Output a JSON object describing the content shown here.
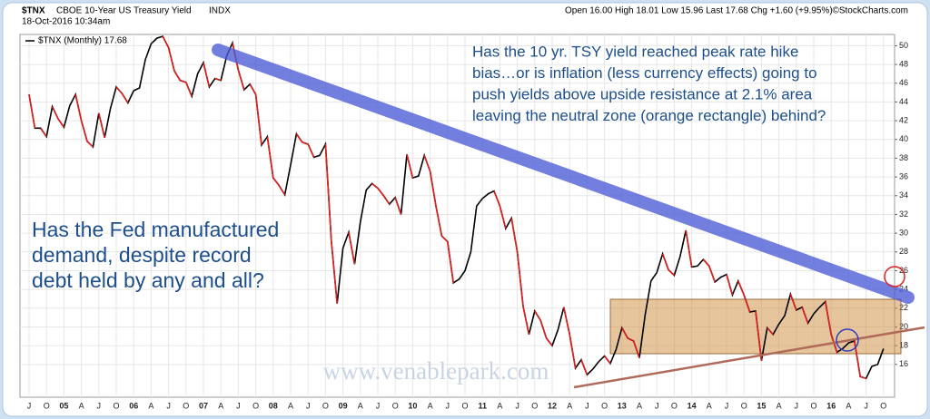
{
  "chart_data": {
    "type": "line",
    "symbol": "$TNX",
    "title": "CBOE 10-Year US Treasury Yield",
    "exchange": "INDX",
    "date": "18-Oct-2016 10:34am",
    "quote": "Open 16.00  High 18.01  Low 15.96  Last 17.68  Chg +1.60 (+9.95%)",
    "source": "©StockCharts.com",
    "categories": [
      "J",
      null,
      null,
      "O",
      null,
      null,
      "05",
      null,
      null,
      "A",
      null,
      null,
      "J",
      null,
      null,
      "O",
      null,
      null,
      "06",
      null,
      null,
      "A",
      null,
      null,
      "J",
      null,
      null,
      "O",
      null,
      null,
      "07",
      null,
      null,
      "A",
      null,
      null,
      "J",
      null,
      null,
      "O",
      null,
      null,
      "08",
      null,
      null,
      "A",
      null,
      null,
      "J",
      null,
      null,
      "O",
      null,
      null,
      "09",
      null,
      null,
      "A",
      null,
      null,
      "J",
      null,
      null,
      "O",
      null,
      null,
      "10",
      null,
      null,
      "A",
      null,
      null,
      "J",
      null,
      null,
      "O",
      null,
      null,
      "11",
      null,
      null,
      "A",
      null,
      null,
      "J",
      null,
      null,
      "O",
      null,
      null,
      "12",
      null,
      null,
      "A",
      null,
      null,
      "J",
      null,
      null,
      "O",
      null,
      null,
      "13",
      null,
      null,
      "A",
      null,
      null,
      "J",
      null,
      null,
      "O",
      null,
      null,
      "14",
      null,
      null,
      "A",
      null,
      null,
      "J",
      null,
      null,
      "O",
      null,
      null,
      "15",
      null,
      null,
      "A",
      null,
      null,
      "J",
      null,
      null,
      "O",
      null,
      null,
      "16",
      null,
      null,
      "A",
      null,
      null,
      "J",
      null,
      null,
      "O"
    ],
    "series": [
      {
        "name": "$TNX (Monthly) 17.68",
        "color": "#000000",
        "down_color": "#e0201e",
        "values": [
          44.8,
          41.2,
          41.2,
          40.3,
          43.5,
          42.2,
          41.3,
          43.6,
          44.8,
          42.0,
          39.8,
          39.2,
          42.8,
          40.2,
          43.3,
          45.6,
          44.9,
          43.9,
          45.2,
          45.5,
          48.5,
          50.2,
          50.8,
          51.0,
          49.8,
          47.3,
          46.3,
          46.1,
          44.6,
          47.0,
          48.2,
          45.6,
          46.5,
          46.3,
          48.9,
          50.3,
          47.4,
          45.3,
          45.9,
          44.8,
          39.4,
          40.3,
          35.9,
          35.1,
          34.1,
          37.3,
          40.6,
          39.7,
          39.5,
          38.1,
          38.3,
          39.5,
          29.2,
          22.5,
          28.4,
          30.1,
          26.7,
          31.2,
          34.6,
          35.3,
          34.8,
          34.0,
          33.1,
          33.8,
          32.0,
          38.4,
          35.9,
          36.1,
          38.3,
          36.6,
          32.9,
          29.7,
          29.1,
          24.7,
          25.1,
          26.0,
          28.0,
          32.9,
          33.7,
          34.2,
          34.5,
          32.9,
          30.5,
          31.6,
          28.0,
          22.2,
          19.2,
          21.7,
          20.7,
          18.8,
          18.0,
          19.7,
          22.1,
          19.2,
          15.6,
          16.5,
          14.9,
          15.5,
          16.3,
          16.9,
          16.1,
          17.6,
          19.9,
          18.8,
          18.5,
          16.7,
          21.3,
          24.9,
          25.8,
          27.8,
          26.1,
          25.5,
          27.5,
          30.3,
          26.4,
          26.5,
          27.2,
          26.5,
          24.8,
          25.3,
          25.6,
          23.4,
          24.9,
          23.4,
          21.6,
          21.7,
          16.4,
          19.9,
          19.2,
          20.3,
          21.2,
          23.5,
          21.8,
          22.1,
          20.4,
          21.4,
          22.1,
          22.7,
          19.2,
          17.3,
          17.7,
          18.3,
          18.5,
          14.7,
          14.5,
          15.8,
          16.0,
          17.68
        ]
      }
    ],
    "ylim": [
      12.5,
      51.2
    ],
    "yticks": [
      16,
      18,
      20,
      22,
      24,
      26,
      28,
      30,
      32,
      34,
      36,
      38,
      40,
      42,
      44,
      46,
      48,
      50
    ],
    "grid": true,
    "note_right": [
      "Has the 10 yr. TSY yield reached peak rate hike",
      "bias…or is inflation (less currency effects) going to",
      "push yields above upside resistance at 2.1% area",
      "leaving the neutral zone (orange rectangle) behind?"
    ],
    "note_left": [
      "Has the Fed manufactured",
      "demand, despite record",
      "debt held by any and all?"
    ],
    "watermark": "www.venablepark.com"
  }
}
